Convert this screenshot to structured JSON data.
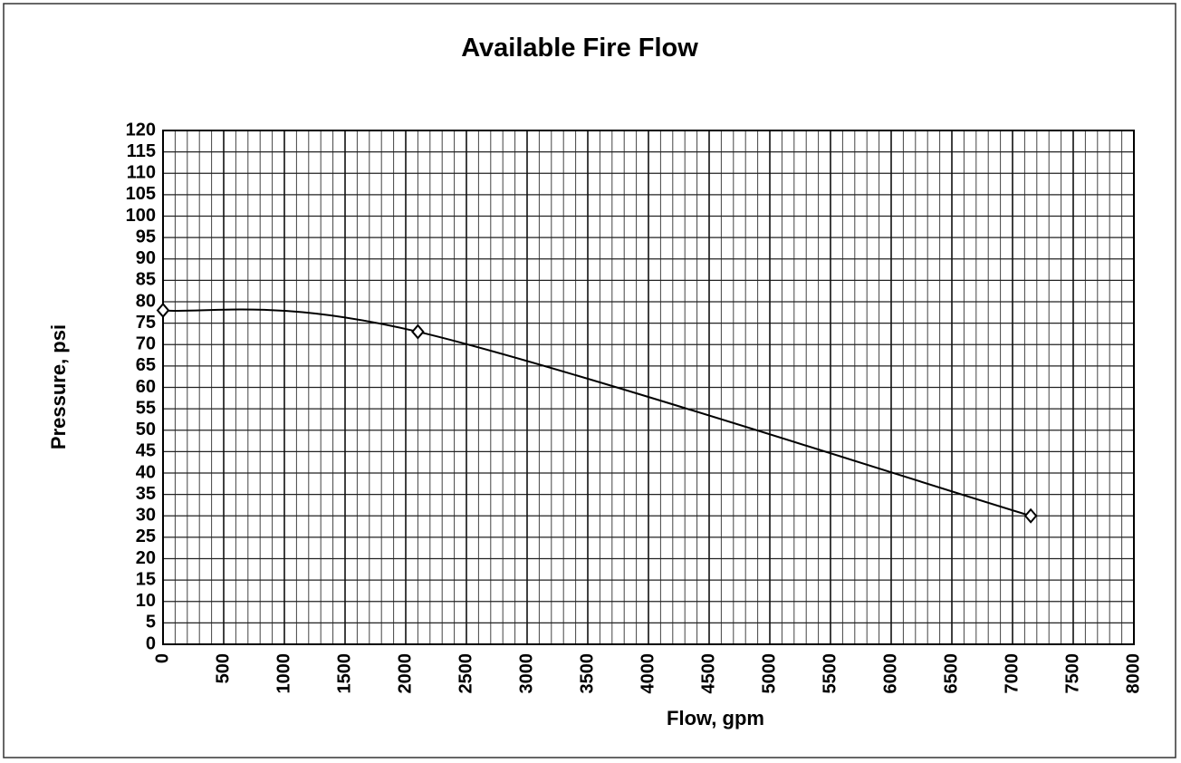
{
  "chart_data": {
    "type": "line",
    "title": "Available Fire Flow",
    "x_label": "Flow, gpm",
    "y_label": "Pressure, psi",
    "series": [
      {
        "name": "Available Fire Flow",
        "color": "#000000",
        "x": [
          0,
          2100,
          7150
        ],
        "values": [
          78,
          73,
          30
        ],
        "smooth": true,
        "marker": "diamond"
      }
    ],
    "xlim": [
      0,
      8000
    ],
    "xticks": [
      0,
      500,
      1000,
      1500,
      2000,
      2500,
      3000,
      3500,
      4000,
      4500,
      5000,
      5500,
      6000,
      6500,
      7000,
      7500,
      8000
    ],
    "x_minor_step": 100,
    "ylim": [
      0,
      120
    ],
    "yticks": [
      0,
      5,
      10,
      15,
      20,
      25,
      30,
      35,
      40,
      45,
      50,
      55,
      60,
      65,
      70,
      75,
      80,
      85,
      90,
      95,
      100,
      105,
      110,
      115,
      120
    ],
    "grid": true
  }
}
